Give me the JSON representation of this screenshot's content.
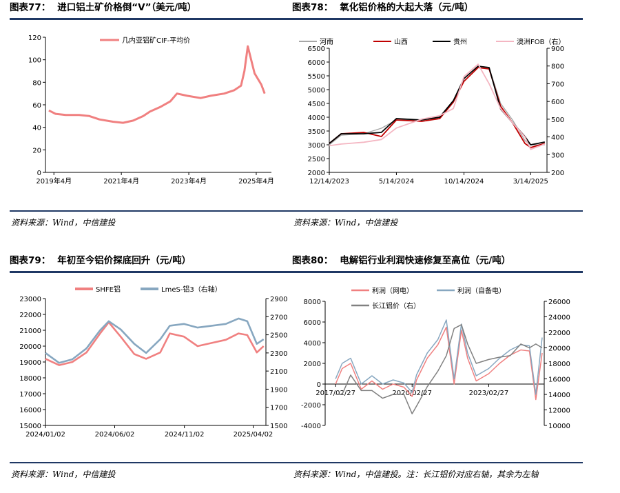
{
  "panels": [
    {
      "title_num": "图表77：",
      "title_text": "进口铝土矿价格倒“V”（美元/吨）",
      "source": "资料来源：Wind，中信建投"
    },
    {
      "title_num": "图表78：",
      "title_text": "氧化铝价格的大起大落（元/吨）",
      "source": "资料来源：Wind，中信建投"
    },
    {
      "title_num": "图表79：",
      "title_text": "年初至今铝价探底回升（元/吨）",
      "source": "资料来源：Wind，中信建投"
    },
    {
      "title_num": "图表80：",
      "title_text": "电解铝行业利润快速修复至高位（元/吨）",
      "source": "资料来源：Wind，中信建投。注：长江铝价对应右轴，其余为左轴"
    }
  ],
  "colors": {
    "rule": "#1f3864",
    "red": "#f08080",
    "blue": "#87a7c0",
    "gray": "#808080",
    "darkred": "#c00000",
    "black": "#000000",
    "pink": "#f4b6c2",
    "lightgray": "#a6a6a6"
  },
  "chart_data": [
    {
      "type": "line",
      "title": "进口铝土矿价格倒“V”（美元/吨）",
      "x_ticks": [
        "2019年4月",
        "2021年4月",
        "2023年4月",
        "2025年4月"
      ],
      "ylim": [
        0,
        120
      ],
      "y_ticks": [
        0,
        20,
        40,
        60,
        80,
        100,
        120
      ],
      "legend": "top",
      "series": [
        {
          "name": "几内亚铝矿CIF-平均价",
          "x": [
            2019.1,
            2019.3,
            2019.6,
            2020.0,
            2020.3,
            2020.6,
            2021.0,
            2021.3,
            2021.6,
            2021.9,
            2022.1,
            2022.4,
            2022.7,
            2022.9,
            2023.2,
            2023.6,
            2023.9,
            2024.3,
            2024.6,
            2024.8,
            2024.9,
            2025.0,
            2025.1,
            2025.2,
            2025.4,
            2025.5
          ],
          "y": [
            55,
            52,
            51,
            51,
            50,
            47,
            45,
            44,
            46,
            50,
            54,
            58,
            63,
            70,
            68,
            66,
            68,
            70,
            73,
            77,
            90,
            112,
            100,
            88,
            78,
            70
          ]
        }
      ]
    },
    {
      "type": "line",
      "title": "氧化铝价格的大起大落（元/吨）",
      "x_ticks": [
        "12/14/2023",
        "5/14/2024",
        "10/14/2024",
        "3/14/2025"
      ],
      "ylim": [
        2000,
        6500
      ],
      "y_ticks": [
        2000,
        2500,
        3000,
        3500,
        4000,
        4500,
        5000,
        5500,
        6000,
        6500
      ],
      "y2lim": [
        200,
        900
      ],
      "y2_ticks": [
        200,
        300,
        400,
        500,
        600,
        700,
        800,
        900
      ],
      "legend": "top",
      "series": [
        {
          "name": "河南",
          "axis": "left",
          "x": [
            "2023-12-14",
            "2024-01-10",
            "2024-03-01",
            "2024-04-10",
            "2024-05-14",
            "2024-07-10",
            "2024-08-20",
            "2024-09-20",
            "2024-10-14",
            "2024-11-15",
            "2024-12-10",
            "2025-01-05",
            "2025-02-01",
            "2025-03-01",
            "2025-03-14",
            "2025-04-15"
          ],
          "y": [
            3000,
            3350,
            3400,
            3600,
            3900,
            3900,
            4000,
            4600,
            5400,
            5850,
            5800,
            4500,
            3900,
            3150,
            3000,
            3000
          ]
        },
        {
          "name": "山西",
          "axis": "left",
          "x": [
            "2023-12-14",
            "2024-01-10",
            "2024-03-01",
            "2024-04-10",
            "2024-05-14",
            "2024-07-10",
            "2024-08-20",
            "2024-09-20",
            "2024-10-14",
            "2024-11-15",
            "2024-12-10",
            "2025-01-05",
            "2025-02-01",
            "2025-03-01",
            "2025-03-14",
            "2025-04-15"
          ],
          "y": [
            3050,
            3400,
            3450,
            3300,
            3900,
            3850,
            3950,
            4550,
            5300,
            5800,
            5750,
            4400,
            3800,
            3050,
            2900,
            3050
          ]
        },
        {
          "name": "贵州",
          "axis": "left",
          "x": [
            "2023-12-14",
            "2024-01-10",
            "2024-03-01",
            "2024-04-10",
            "2024-05-14",
            "2024-07-10",
            "2024-08-20",
            "2024-09-20",
            "2024-10-14",
            "2024-11-15",
            "2024-12-10",
            "2025-01-05",
            "2025-02-01",
            "2025-03-01",
            "2025-03-14",
            "2025-04-15"
          ],
          "y": [
            3050,
            3400,
            3400,
            3450,
            3950,
            3900,
            4000,
            4600,
            5400,
            5850,
            5800,
            4300,
            3800,
            3300,
            3000,
            3100
          ]
        },
        {
          "name": "澳洲FOB（右）",
          "axis": "right",
          "x": [
            "2023-12-14",
            "2024-01-10",
            "2024-03-01",
            "2024-04-10",
            "2024-05-14",
            "2024-07-10",
            "2024-08-20",
            "2024-09-20",
            "2024-10-14",
            "2024-11-15",
            "2024-12-10",
            "2025-01-05",
            "2025-02-01",
            "2025-03-01",
            "2025-03-14",
            "2025-04-15"
          ],
          "y": [
            350,
            360,
            370,
            385,
            450,
            500,
            520,
            560,
            740,
            810,
            700,
            560,
            480,
            400,
            330,
            360
          ]
        }
      ]
    },
    {
      "type": "line",
      "title": "年初至今铝价探底回升（元/吨）",
      "x_ticks": [
        "2024/01/02",
        "2024/06/02",
        "2024/11/02",
        "2025/04/02"
      ],
      "ylim": [
        15000,
        23000
      ],
      "y_ticks": [
        15000,
        16000,
        17000,
        18000,
        19000,
        20000,
        21000,
        22000,
        23000
      ],
      "y2lim": [
        1500,
        2900
      ],
      "y2_ticks": [
        1500,
        1700,
        1900,
        2100,
        2300,
        2500,
        2700,
        2900
      ],
      "legend": "top",
      "series": [
        {
          "name": "SHFE铝",
          "axis": "left",
          "x": [
            "2024-01-02",
            "2024-02-01",
            "2024-03-01",
            "2024-04-01",
            "2024-05-01",
            "2024-05-20",
            "2024-06-15",
            "2024-07-15",
            "2024-08-10",
            "2024-09-10",
            "2024-10-01",
            "2024-11-01",
            "2024-12-01",
            "2025-01-01",
            "2025-02-01",
            "2025-03-01",
            "2025-03-20",
            "2025-04-10",
            "2025-04-25"
          ],
          "y": [
            19200,
            18800,
            19000,
            19600,
            20800,
            21500,
            20600,
            19500,
            19200,
            19600,
            20800,
            20600,
            20000,
            20200,
            20400,
            20800,
            20700,
            19600,
            20000
          ]
        },
        {
          "name": "LmeS-铝3（右轴）",
          "axis": "right",
          "x": [
            "2024-01-02",
            "2024-02-01",
            "2024-03-01",
            "2024-04-01",
            "2024-05-01",
            "2024-05-20",
            "2024-06-15",
            "2024-07-15",
            "2024-08-10",
            "2024-09-10",
            "2024-10-01",
            "2024-11-01",
            "2024-12-01",
            "2025-01-01",
            "2025-02-01",
            "2025-03-01",
            "2025-03-20",
            "2025-04-10",
            "2025-04-25"
          ],
          "y": [
            2300,
            2190,
            2230,
            2350,
            2550,
            2650,
            2560,
            2400,
            2300,
            2450,
            2600,
            2620,
            2580,
            2600,
            2620,
            2680,
            2650,
            2400,
            2450
          ]
        }
      ]
    },
    {
      "type": "line",
      "title": "电解铝行业利润快速修复至高位（元/吨）",
      "x_ticks": [
        "2017/02/27",
        "2020/02/27",
        "2023/02/27"
      ],
      "ylim": [
        -4000,
        8000
      ],
      "y_ticks": [
        -4000,
        -2000,
        0,
        2000,
        4000,
        6000,
        8000
      ],
      "y2lim": [
        10000,
        26000
      ],
      "y2_ticks": [
        10000,
        12000,
        14000,
        16000,
        18000,
        20000,
        22000,
        24000,
        26000
      ],
      "legend": "top",
      "series": [
        {
          "name": "利润（网电）",
          "axis": "left",
          "x": [
            "2017-02-27",
            "2017-06-01",
            "2017-10-01",
            "2018-03-01",
            "2018-08-01",
            "2019-01-01",
            "2019-06-01",
            "2019-11-01",
            "2020-02-27",
            "2020-05-01",
            "2020-10-01",
            "2021-03-01",
            "2021-07-01",
            "2021-10-20",
            "2022-02-01",
            "2022-05-01",
            "2022-09-01",
            "2023-02-27",
            "2023-08-01",
            "2024-01-01",
            "2024-06-01",
            "2024-10-01",
            "2025-01-01",
            "2025-04-01"
          ],
          "y": [
            0,
            1500,
            2000,
            -500,
            300,
            -500,
            0,
            -300,
            -1200,
            400,
            2500,
            3800,
            5500,
            0,
            5200,
            2500,
            300,
            1000,
            2000,
            2800,
            3300,
            3200,
            -1500,
            3000
          ]
        },
        {
          "name": "利润（自备电）",
          "axis": "left",
          "x": [
            "2017-02-27",
            "2017-06-01",
            "2017-10-01",
            "2018-03-01",
            "2018-08-01",
            "2019-01-01",
            "2019-06-01",
            "2019-11-01",
            "2020-02-27",
            "2020-05-01",
            "2020-10-01",
            "2021-03-01",
            "2021-07-01",
            "2021-10-20",
            "2022-02-01",
            "2022-05-01",
            "2022-09-01",
            "2023-02-27",
            "2023-08-01",
            "2024-01-01",
            "2024-06-01",
            "2024-10-01",
            "2025-01-01",
            "2025-04-01"
          ],
          "y": [
            500,
            2000,
            2500,
            0,
            800,
            0,
            400,
            100,
            -800,
            900,
            3000,
            4300,
            6200,
            500,
            5800,
            3000,
            800,
            1500,
            2500,
            3300,
            3800,
            3700,
            -1000,
            4500
          ]
        },
        {
          "name": "长江铝价（右）",
          "axis": "right",
          "x": [
            "2017-02-27",
            "2017-06-01",
            "2017-10-01",
            "2018-03-01",
            "2018-08-01",
            "2019-01-01",
            "2019-06-01",
            "2019-11-01",
            "2020-02-27",
            "2020-05-01",
            "2020-10-01",
            "2021-03-01",
            "2021-07-01",
            "2021-10-20",
            "2022-02-01",
            "2022-05-01",
            "2022-09-01",
            "2023-02-27",
            "2023-08-01",
            "2024-01-01",
            "2024-06-01",
            "2024-10-01",
            "2025-01-01",
            "2025-04-01"
          ],
          "y": [
            14000,
            14000,
            16500,
            14500,
            14500,
            13500,
            14000,
            14000,
            11500,
            12500,
            15000,
            17000,
            19000,
            22500,
            23000,
            20500,
            18000,
            18500,
            18800,
            19000,
            20500,
            20000,
            20500,
            20000
          ]
        }
      ]
    }
  ]
}
